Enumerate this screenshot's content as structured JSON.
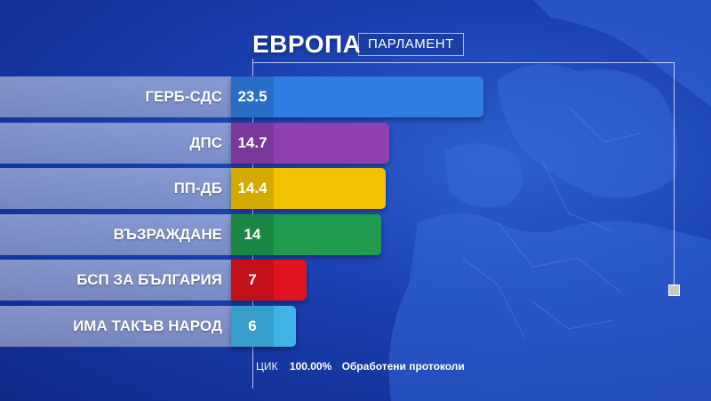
{
  "header": {
    "title": "ЕВРОПА",
    "subtitle": "ПАРЛАМЕНТ"
  },
  "footer": {
    "source": "ЦИК",
    "percent": "100.00%",
    "text": "Обработени протоколи"
  },
  "chart_data": {
    "type": "bar",
    "orientation": "horizontal",
    "title": "ЕВРОПА",
    "subtitle": "ПАРЛАМЕНТ",
    "categories": [
      "ГЕРБ-СДС",
      "ДПС",
      "ПП-ДБ",
      "ВЪЗРАЖДАНЕ",
      "БСП ЗА БЪЛГАРИЯ",
      "ИМА ТАКЪВ НАРОД"
    ],
    "values": [
      23.5,
      14.7,
      14.4,
      14,
      7,
      6
    ],
    "value_labels": [
      "23.5",
      "14.7",
      "14.4",
      "14",
      "7",
      "6"
    ],
    "colors": [
      "#2f7de3",
      "#8e3fb0",
      "#f2c200",
      "#1f9a4e",
      "#e0131f",
      "#3fb3e6"
    ],
    "grid": false
  }
}
